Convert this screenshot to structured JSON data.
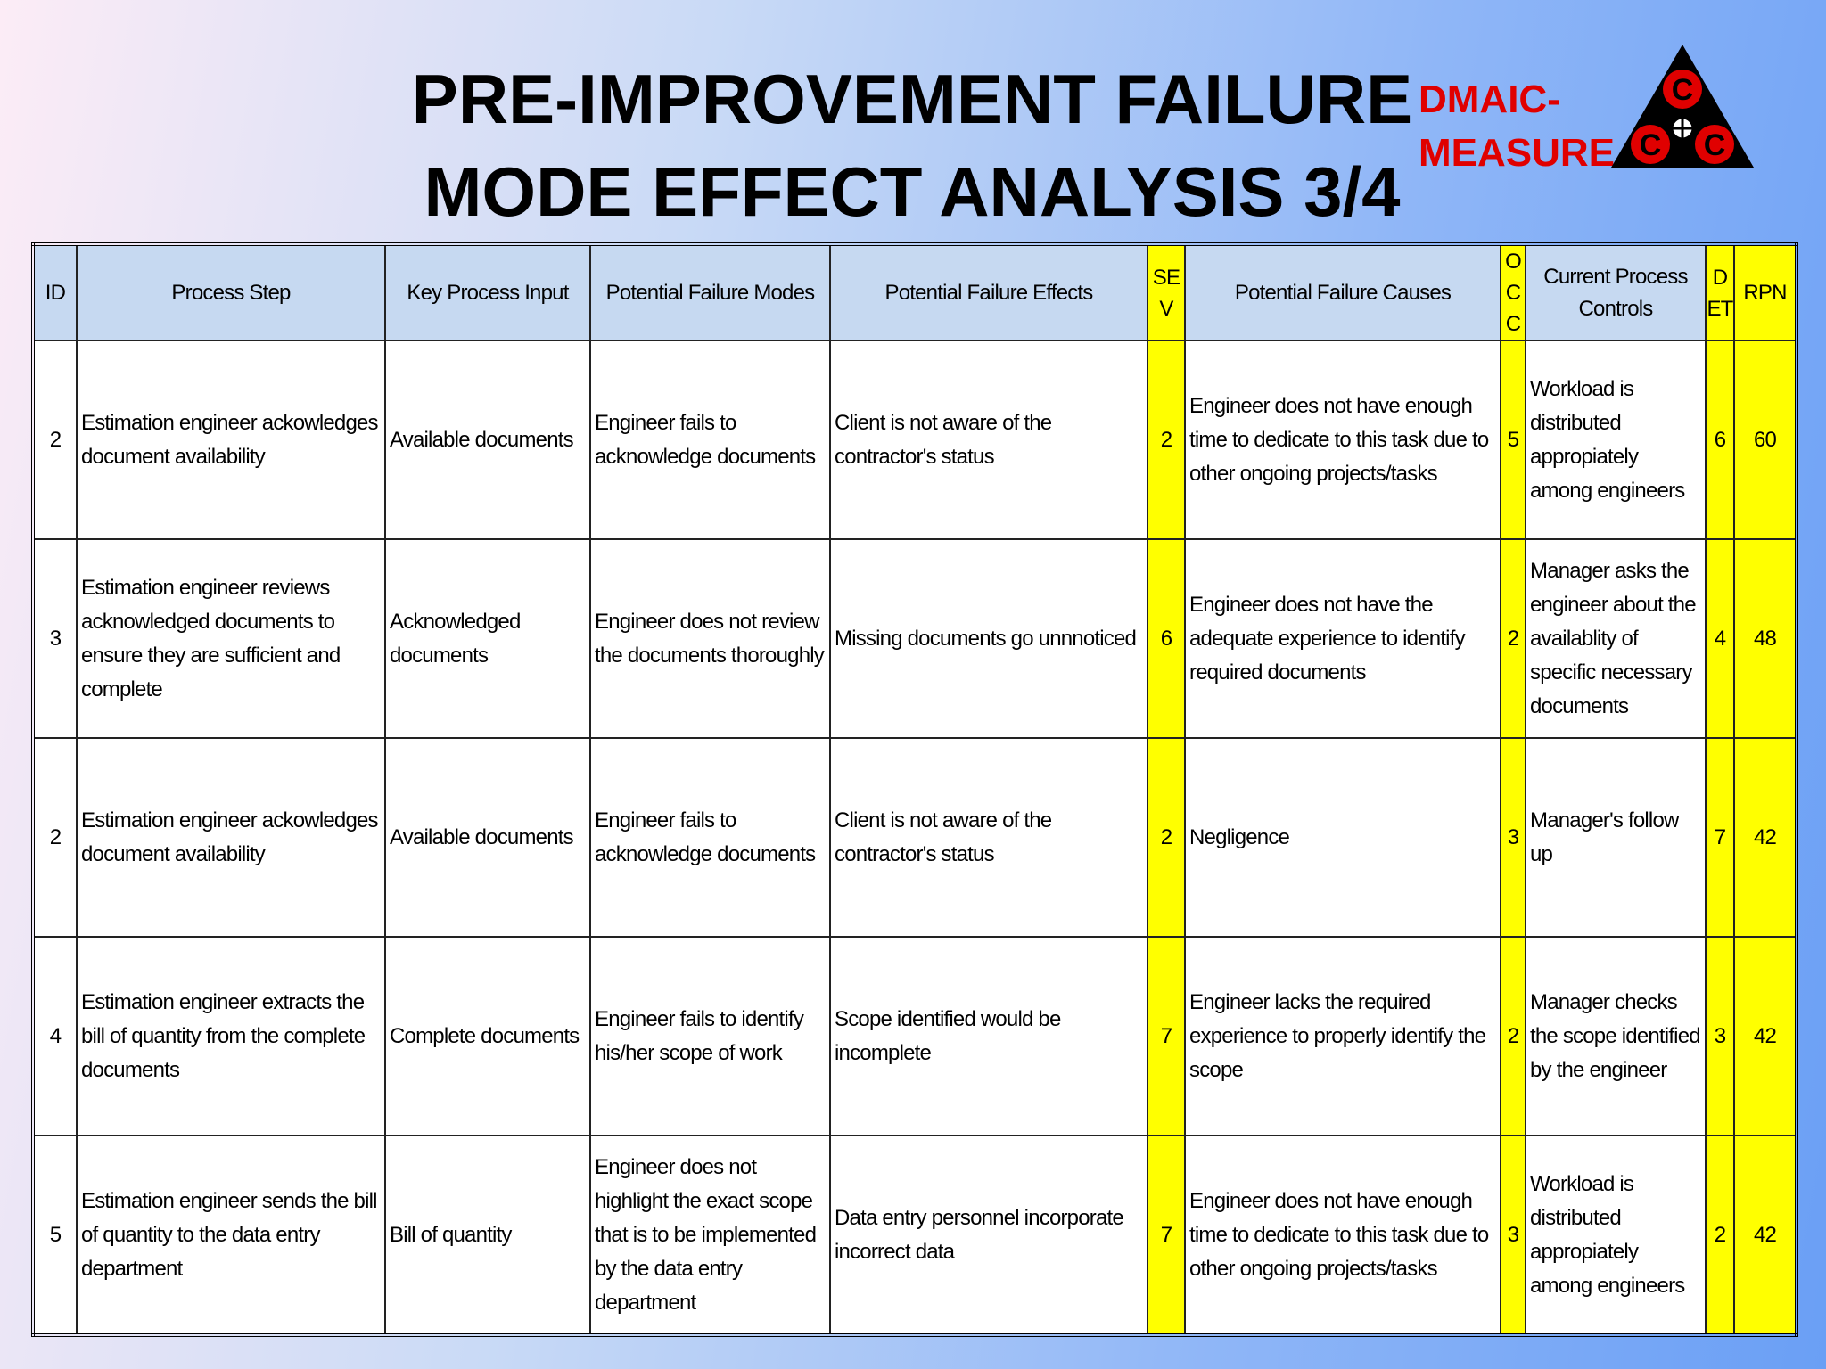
{
  "header": {
    "title_lines": [
      "PRE-IMPROVEMENT FAILURE",
      "MODE EFFECT ANALYSIS 3/4"
    ],
    "tag_lines": [
      "DMAIC-",
      "MEASURE"
    ],
    "logo_letters": [
      "C",
      "C",
      "C"
    ]
  },
  "table": {
    "columns": [
      "ID",
      "Process Step",
      "Key Process Input",
      "Potential Failure Modes",
      "Potential Failure Effects",
      "SEV",
      "Potential Failure Causes",
      "OCC",
      "Current Process Controls",
      "DET",
      "RPN"
    ],
    "rows": [
      [
        "2",
        "Estimation engineer ackowledges document availability",
        "Available documents",
        "Engineer fails to acknowledge documents",
        "Client is not aware of the contractor's status",
        "2",
        "Engineer does not have enough time to dedicate to this task due to other ongoing projects/tasks",
        "5",
        "Workload is distributed appropiately among engineers",
        "6",
        "60"
      ],
      [
        "3",
        "Estimation engineer reviews acknowledged documents to ensure they are sufficient and complete",
        "Acknowledged documents",
        "Engineer does not review the documents thoroughly",
        "Missing documents go unnnoticed",
        "6",
        "Engineer does not have the adequate experience to identify required documents",
        "2",
        "Manager asks the engineer about the availablity of specific necessary documents",
        "4",
        "48"
      ],
      [
        "2",
        "Estimation engineer ackowledges document availability",
        "Available documents",
        "Engineer fails to acknowledge documents",
        "Client is not aware of the contractor's status",
        "2",
        "Negligence",
        "3",
        "Manager's follow up",
        "7",
        "42"
      ],
      [
        "4",
        "Estimation engineer extracts the bill of quantity from the complete documents",
        "Complete documents",
        "Engineer fails to identify his/her scope of work",
        "Scope identified would be incomplete",
        "7",
        "Engineer lacks the required experience to properly identify the scope",
        "2",
        "Manager checks the scope identified by the engineer",
        "3",
        "42"
      ],
      [
        "5",
        "Estimation engineer sends the bill of quantity to the data entry department",
        "Bill of quantity",
        "Engineer does not highlight the exact scope that is to be implemented by the data entry department",
        "Data entry personnel incorporate incorrect data",
        "7",
        "Engineer does not have enough time to dedicate to this task due to other ongoing projects/tasks",
        "3",
        "Workload is distributed appropiately among engineers",
        "2",
        "42"
      ]
    ]
  }
}
